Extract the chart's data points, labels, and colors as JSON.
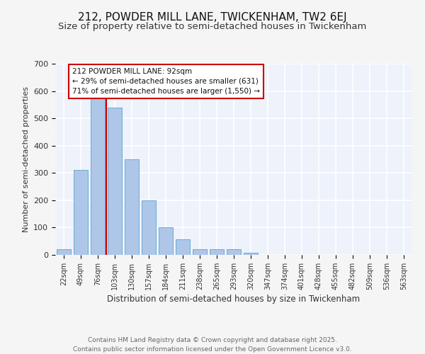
{
  "title1": "212, POWDER MILL LANE, TWICKENHAM, TW2 6EJ",
  "title2": "Size of property relative to semi-detached houses in Twickenham",
  "xlabel": "Distribution of semi-detached houses by size in Twickenham",
  "ylabel": "Number of semi-detached properties",
  "categories": [
    "22sqm",
    "49sqm",
    "76sqm",
    "103sqm",
    "130sqm",
    "157sqm",
    "184sqm",
    "211sqm",
    "238sqm",
    "265sqm",
    "293sqm",
    "320sqm",
    "347sqm",
    "374sqm",
    "401sqm",
    "428sqm",
    "455sqm",
    "482sqm",
    "509sqm",
    "536sqm",
    "563sqm"
  ],
  "values": [
    20,
    310,
    575,
    540,
    350,
    200,
    100,
    57,
    20,
    20,
    20,
    7,
    0,
    0,
    0,
    0,
    0,
    0,
    0,
    0,
    0
  ],
  "bar_color": "#aec6e8",
  "bar_edge_color": "#6aaad4",
  "vline_color": "#cc0000",
  "annotation_text": "212 POWDER MILL LANE: 92sqm\n← 29% of semi-detached houses are smaller (631)\n71% of semi-detached houses are larger (1,550) →",
  "annotation_box_color": "#ffffff",
  "annotation_box_edge": "#cc0000",
  "ylim": [
    0,
    700
  ],
  "yticks": [
    0,
    100,
    200,
    300,
    400,
    500,
    600,
    700
  ],
  "background_color": "#eef2fb",
  "grid_color": "#ffffff",
  "footer_text": "Contains HM Land Registry data © Crown copyright and database right 2025.\nContains public sector information licensed under the Open Government Licence v3.0.",
  "title1_fontsize": 11,
  "title2_fontsize": 9.5,
  "footer_fontsize": 6.5
}
